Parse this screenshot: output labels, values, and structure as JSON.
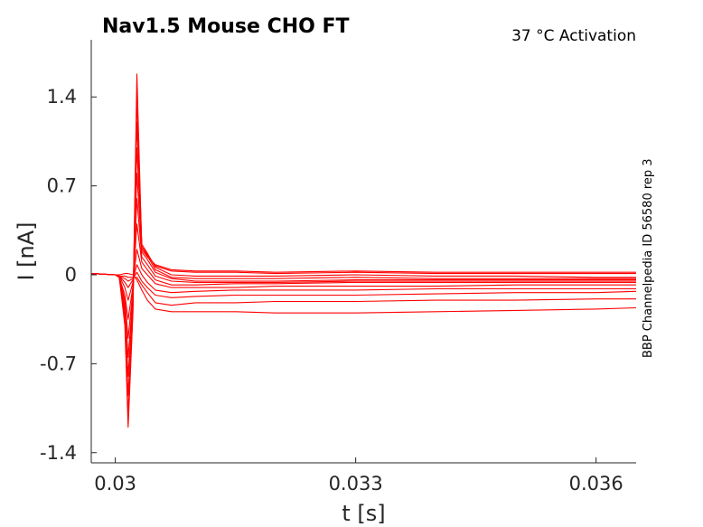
{
  "chart_data": {
    "type": "line",
    "title": "Nav1.5  Mouse  CHO FT",
    "subtitle": "37 °C  Activation",
    "side_note": "BBP Channelpedia ID 56580 rep 3",
    "xlabel": "t [s]",
    "ylabel": "I [nA]",
    "xlim": [
      0.0297,
      0.0365
    ],
    "ylim": [
      -1.48,
      1.85
    ],
    "xticks": [
      0.03,
      0.033,
      0.036
    ],
    "xtick_labels": [
      "0.03",
      "0.033",
      "0.036"
    ],
    "yticks": [
      1.4,
      0.7,
      0,
      -0.7,
      -1.4
    ],
    "ytick_labels": [
      "1.4",
      "0.7",
      "0",
      "-0.7",
      "-1.4"
    ],
    "grid": false,
    "legend": "none",
    "color": "#ff0000",
    "series": [
      {
        "x": [
          0.0297,
          0.03,
          0.03005,
          0.03012,
          0.03016,
          0.03022,
          0.03027,
          0.03033,
          0.0304,
          0.0305,
          0.0307,
          0.031,
          0.0315,
          0.032,
          0.033,
          0.034,
          0.035,
          0.036,
          0.0365
        ],
        "values": [
          0.01,
          0.0,
          -0.02,
          -0.4,
          -1.2,
          -0.3,
          1.58,
          0.2,
          0.14,
          0.08,
          0.04,
          0.03,
          0.03,
          0.02,
          0.03,
          0.02,
          0.02,
          0.02,
          0.02
        ]
      },
      {
        "x": [
          0.0297,
          0.03,
          0.03005,
          0.03012,
          0.03016,
          0.03022,
          0.03027,
          0.03033,
          0.0304,
          0.0305,
          0.0307,
          0.031,
          0.0315,
          0.032,
          0.033,
          0.034,
          0.035,
          0.036,
          0.0365
        ],
        "values": [
          0.01,
          0.0,
          -0.02,
          -0.36,
          -1.1,
          -0.28,
          1.4,
          0.22,
          0.16,
          0.07,
          0.03,
          0.02,
          0.02,
          0.01,
          0.02,
          0.01,
          0.01,
          0.01,
          0.01
        ]
      },
      {
        "x": [
          0.0297,
          0.03,
          0.03005,
          0.03012,
          0.03016,
          0.03022,
          0.03027,
          0.03033,
          0.0304,
          0.0305,
          0.0307,
          0.031,
          0.0315,
          0.032,
          0.033,
          0.034,
          0.035,
          0.036,
          0.0365
        ],
        "values": [
          0.01,
          0.0,
          -0.02,
          -0.32,
          -0.95,
          -0.24,
          1.2,
          0.24,
          0.17,
          0.06,
          0.0,
          -0.01,
          -0.01,
          -0.01,
          0.0,
          -0.01,
          -0.01,
          -0.02,
          -0.02
        ]
      },
      {
        "x": [
          0.0297,
          0.03,
          0.03005,
          0.03012,
          0.03016,
          0.03022,
          0.03027,
          0.03033,
          0.0304,
          0.0305,
          0.0307,
          0.031,
          0.0315,
          0.032,
          0.033,
          0.034,
          0.035,
          0.036,
          0.0365
        ],
        "values": [
          0.01,
          0.0,
          -0.02,
          -0.28,
          -0.8,
          -0.2,
          1.0,
          0.22,
          0.15,
          0.04,
          -0.02,
          -0.03,
          -0.03,
          -0.03,
          -0.02,
          -0.03,
          -0.03,
          -0.03,
          -0.03
        ]
      },
      {
        "x": [
          0.0297,
          0.03,
          0.03005,
          0.03012,
          0.03016,
          0.03022,
          0.03027,
          0.03033,
          0.0304,
          0.0305,
          0.0307,
          0.031,
          0.0315,
          0.032,
          0.033,
          0.034,
          0.035,
          0.036,
          0.0365
        ],
        "values": [
          0.01,
          0.0,
          -0.02,
          -0.24,
          -0.65,
          -0.16,
          0.8,
          0.18,
          0.12,
          0.02,
          -0.03,
          -0.05,
          -0.05,
          -0.05,
          -0.04,
          -0.04,
          -0.04,
          -0.04,
          -0.04
        ]
      },
      {
        "x": [
          0.0297,
          0.03,
          0.03005,
          0.03012,
          0.03016,
          0.03022,
          0.03027,
          0.03033,
          0.0304,
          0.0305,
          0.0307,
          0.031,
          0.0315,
          0.032,
          0.033,
          0.034,
          0.035,
          0.036,
          0.0365
        ],
        "values": [
          0.01,
          0.0,
          -0.02,
          -0.2,
          -0.5,
          -0.12,
          0.6,
          0.14,
          0.08,
          -0.01,
          -0.05,
          -0.06,
          -0.06,
          -0.06,
          -0.05,
          -0.05,
          -0.05,
          -0.05,
          -0.05
        ]
      },
      {
        "x": [
          0.0297,
          0.03,
          0.03005,
          0.03012,
          0.03016,
          0.03022,
          0.03027,
          0.03033,
          0.0304,
          0.0305,
          0.0307,
          0.031,
          0.0315,
          0.032,
          0.033,
          0.034,
          0.035,
          0.036,
          0.0365
        ],
        "values": [
          0.01,
          0.0,
          -0.02,
          -0.16,
          -0.35,
          -0.09,
          0.4,
          0.1,
          0.04,
          -0.04,
          -0.08,
          -0.08,
          -0.07,
          -0.07,
          -0.06,
          -0.06,
          -0.06,
          -0.06,
          -0.06
        ]
      },
      {
        "x": [
          0.0297,
          0.03,
          0.03005,
          0.03012,
          0.03016,
          0.03022,
          0.03027,
          0.03033,
          0.0304,
          0.0305,
          0.0307,
          0.031,
          0.0315,
          0.032,
          0.033,
          0.034,
          0.035,
          0.036,
          0.0365
        ],
        "values": [
          0.01,
          0.0,
          -0.01,
          -0.1,
          -0.2,
          -0.06,
          0.2,
          0.05,
          0.0,
          -0.07,
          -0.1,
          -0.1,
          -0.1,
          -0.09,
          -0.09,
          -0.09,
          -0.08,
          -0.08,
          -0.08
        ]
      },
      {
        "x": [
          0.0297,
          0.03,
          0.03005,
          0.03012,
          0.03016,
          0.03022,
          0.03027,
          0.03033,
          0.0304,
          0.0305,
          0.0307,
          0.031,
          0.0315,
          0.032,
          0.033,
          0.034,
          0.035,
          0.036,
          0.0365
        ],
        "values": [
          0.01,
          0.0,
          -0.01,
          -0.06,
          -0.1,
          -0.04,
          0.08,
          0.0,
          -0.06,
          -0.12,
          -0.14,
          -0.13,
          -0.12,
          -0.12,
          -0.12,
          -0.11,
          -0.11,
          -0.11,
          -0.11
        ]
      },
      {
        "x": [
          0.0297,
          0.03,
          0.03005,
          0.03012,
          0.03016,
          0.03022,
          0.03027,
          0.03033,
          0.0304,
          0.0305,
          0.0307,
          0.031,
          0.0315,
          0.032,
          0.033,
          0.034,
          0.035,
          0.036,
          0.0365
        ],
        "values": [
          0.01,
          0.0,
          -0.01,
          -0.03,
          -0.05,
          -0.03,
          0.02,
          -0.05,
          -0.1,
          -0.16,
          -0.18,
          -0.17,
          -0.16,
          -0.16,
          -0.16,
          -0.15,
          -0.14,
          -0.14,
          -0.13
        ]
      },
      {
        "x": [
          0.0297,
          0.03,
          0.03005,
          0.03012,
          0.03016,
          0.03022,
          0.03027,
          0.03033,
          0.0304,
          0.0305,
          0.0307,
          0.031,
          0.0315,
          0.032,
          0.033,
          0.034,
          0.035,
          0.036,
          0.0365
        ],
        "values": [
          0.01,
          0.0,
          -0.01,
          -0.01,
          -0.02,
          -0.02,
          -0.02,
          -0.08,
          -0.14,
          -0.22,
          -0.24,
          -0.22,
          -0.22,
          -0.21,
          -0.21,
          -0.2,
          -0.2,
          -0.19,
          -0.19
        ]
      },
      {
        "x": [
          0.0297,
          0.03,
          0.03005,
          0.03012,
          0.03016,
          0.03022,
          0.03027,
          0.03033,
          0.0304,
          0.0305,
          0.0307,
          0.031,
          0.0315,
          0.032,
          0.033,
          0.034,
          0.035,
          0.036,
          0.0365
        ],
        "values": [
          0.01,
          0.0,
          0.0,
          0.01,
          0.01,
          0.0,
          -0.04,
          -0.12,
          -0.2,
          -0.27,
          -0.29,
          -0.29,
          -0.29,
          -0.3,
          -0.3,
          -0.29,
          -0.28,
          -0.27,
          -0.26
        ]
      }
    ]
  }
}
